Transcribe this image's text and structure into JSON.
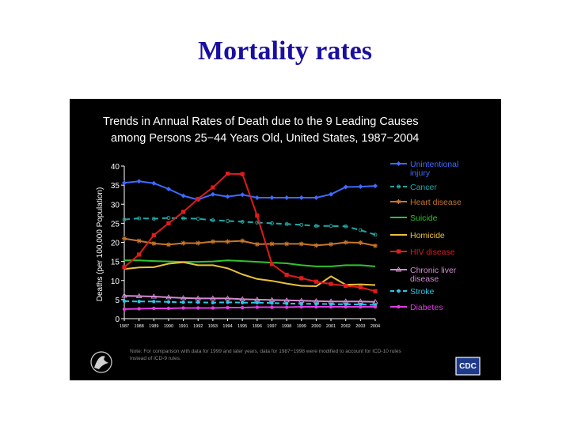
{
  "slide": {
    "title": "Mortality rates"
  },
  "chart_data": {
    "type": "line",
    "title_line1": "Trends in Annual Rates of Death due to the 9 Leading Causes",
    "title_line2": "among Persons 25−44 Years Old, United States, 1987−2004",
    "ylabel": "Deaths (per 100,000 Population)",
    "xlabel": "",
    "ylim": [
      0,
      40
    ],
    "yticks": [
      0,
      5,
      10,
      15,
      20,
      25,
      30,
      35,
      40
    ],
    "x": [
      "1987",
      "1988",
      "1989",
      "1990",
      "1991",
      "1992",
      "1993",
      "1994",
      "1995",
      "1996",
      "1997",
      "1998",
      "1999",
      "2000",
      "2001",
      "2002",
      "2003",
      "2004"
    ],
    "series": [
      {
        "name": "Unintentional injury",
        "legend_lines": [
          "Unintentional",
          "injury"
        ],
        "color": "#3d6bff",
        "dash": "",
        "marker": "diamond",
        "values": [
          35.6,
          36.0,
          35.5,
          34.0,
          32.2,
          31.2,
          32.6,
          32.0,
          32.5,
          31.7,
          31.7,
          31.7,
          31.7,
          31.7,
          32.6,
          34.5,
          34.6,
          34.8
        ]
      },
      {
        "name": "Cancer",
        "legend_lines": [
          "Cancer"
        ],
        "color": "#1fa9a6",
        "dash": "7,5",
        "marker": "circle-open",
        "values": [
          26.0,
          26.3,
          26.2,
          26.4,
          26.3,
          26.2,
          25.8,
          25.6,
          25.4,
          25.2,
          25.0,
          24.8,
          24.6,
          24.3,
          24.3,
          24.2,
          23.2,
          22.0
        ]
      },
      {
        "name": "Heart disease",
        "legend_lines": [
          "Heart disease"
        ],
        "color": "#c8762a",
        "dash": "",
        "marker": "star",
        "values": [
          21.0,
          20.4,
          19.7,
          19.4,
          19.8,
          19.8,
          20.2,
          20.2,
          20.4,
          19.5,
          19.6,
          19.6,
          19.6,
          19.2,
          19.5,
          20.0,
          19.9,
          19.1
        ]
      },
      {
        "name": "Suicide",
        "legend_lines": [
          "Suicide"
        ],
        "color": "#2ec42e",
        "dash": "",
        "marker": "none",
        "values": [
          15.3,
          15.3,
          15.1,
          15.0,
          14.9,
          14.9,
          15.0,
          15.3,
          15.1,
          14.9,
          14.7,
          14.5,
          14.0,
          13.7,
          13.7,
          14.0,
          14.0,
          13.7
        ]
      },
      {
        "name": "Homicide",
        "legend_lines": [
          "Homicide"
        ],
        "color": "#e8c33a",
        "dash": "",
        "marker": "none",
        "values": [
          13.0,
          13.4,
          13.5,
          14.4,
          14.8,
          14.0,
          14.0,
          13.2,
          11.6,
          10.4,
          9.9,
          9.2,
          8.6,
          8.5,
          11.1,
          8.9,
          9.0,
          8.8
        ]
      },
      {
        "name": "HIV disease",
        "legend_lines": [
          "HIV disease"
        ],
        "color": "#e01b1b",
        "dash": "",
        "marker": "square",
        "values": [
          13.5,
          16.8,
          21.9,
          25.0,
          28.0,
          31.4,
          34.4,
          38.0,
          37.9,
          27.0,
          14.3,
          11.5,
          10.6,
          9.7,
          9.1,
          8.6,
          8.2,
          7.2
        ]
      },
      {
        "name": "Chronic liver disease",
        "legend_lines": [
          "Chronic liver",
          "disease"
        ],
        "color": "#d38cd3",
        "dash": "",
        "marker": "triangle-open",
        "values": [
          6.0,
          5.9,
          5.8,
          5.6,
          5.4,
          5.3,
          5.3,
          5.3,
          5.1,
          5.0,
          4.9,
          4.8,
          4.7,
          4.6,
          4.5,
          4.5,
          4.5,
          4.4
        ]
      },
      {
        "name": "Stroke",
        "legend_lines": [
          "Stroke"
        ],
        "color": "#2cc6e6",
        "dash": "6,4",
        "marker": "circle",
        "values": [
          4.6,
          4.5,
          4.5,
          4.4,
          4.3,
          4.3,
          4.2,
          4.3,
          4.2,
          4.2,
          4.1,
          4.0,
          3.9,
          3.9,
          3.8,
          3.8,
          3.7,
          3.6
        ]
      },
      {
        "name": "Diabetes",
        "legend_lines": [
          "Diabetes"
        ],
        "color": "#e33ae3",
        "dash": "",
        "marker": "circle",
        "values": [
          2.5,
          2.6,
          2.7,
          2.7,
          2.8,
          2.8,
          2.8,
          2.9,
          2.9,
          3.0,
          3.0,
          3.0,
          3.1,
          3.1,
          3.1,
          3.1,
          3.1,
          3.1
        ]
      }
    ],
    "note": [
      "Note: For comparison with data for 1999 and later years, data for 1987−1998 were modified to account for ICD-10 rules",
      "instead of ICD-9 rules."
    ],
    "logo_text": "CDC"
  }
}
